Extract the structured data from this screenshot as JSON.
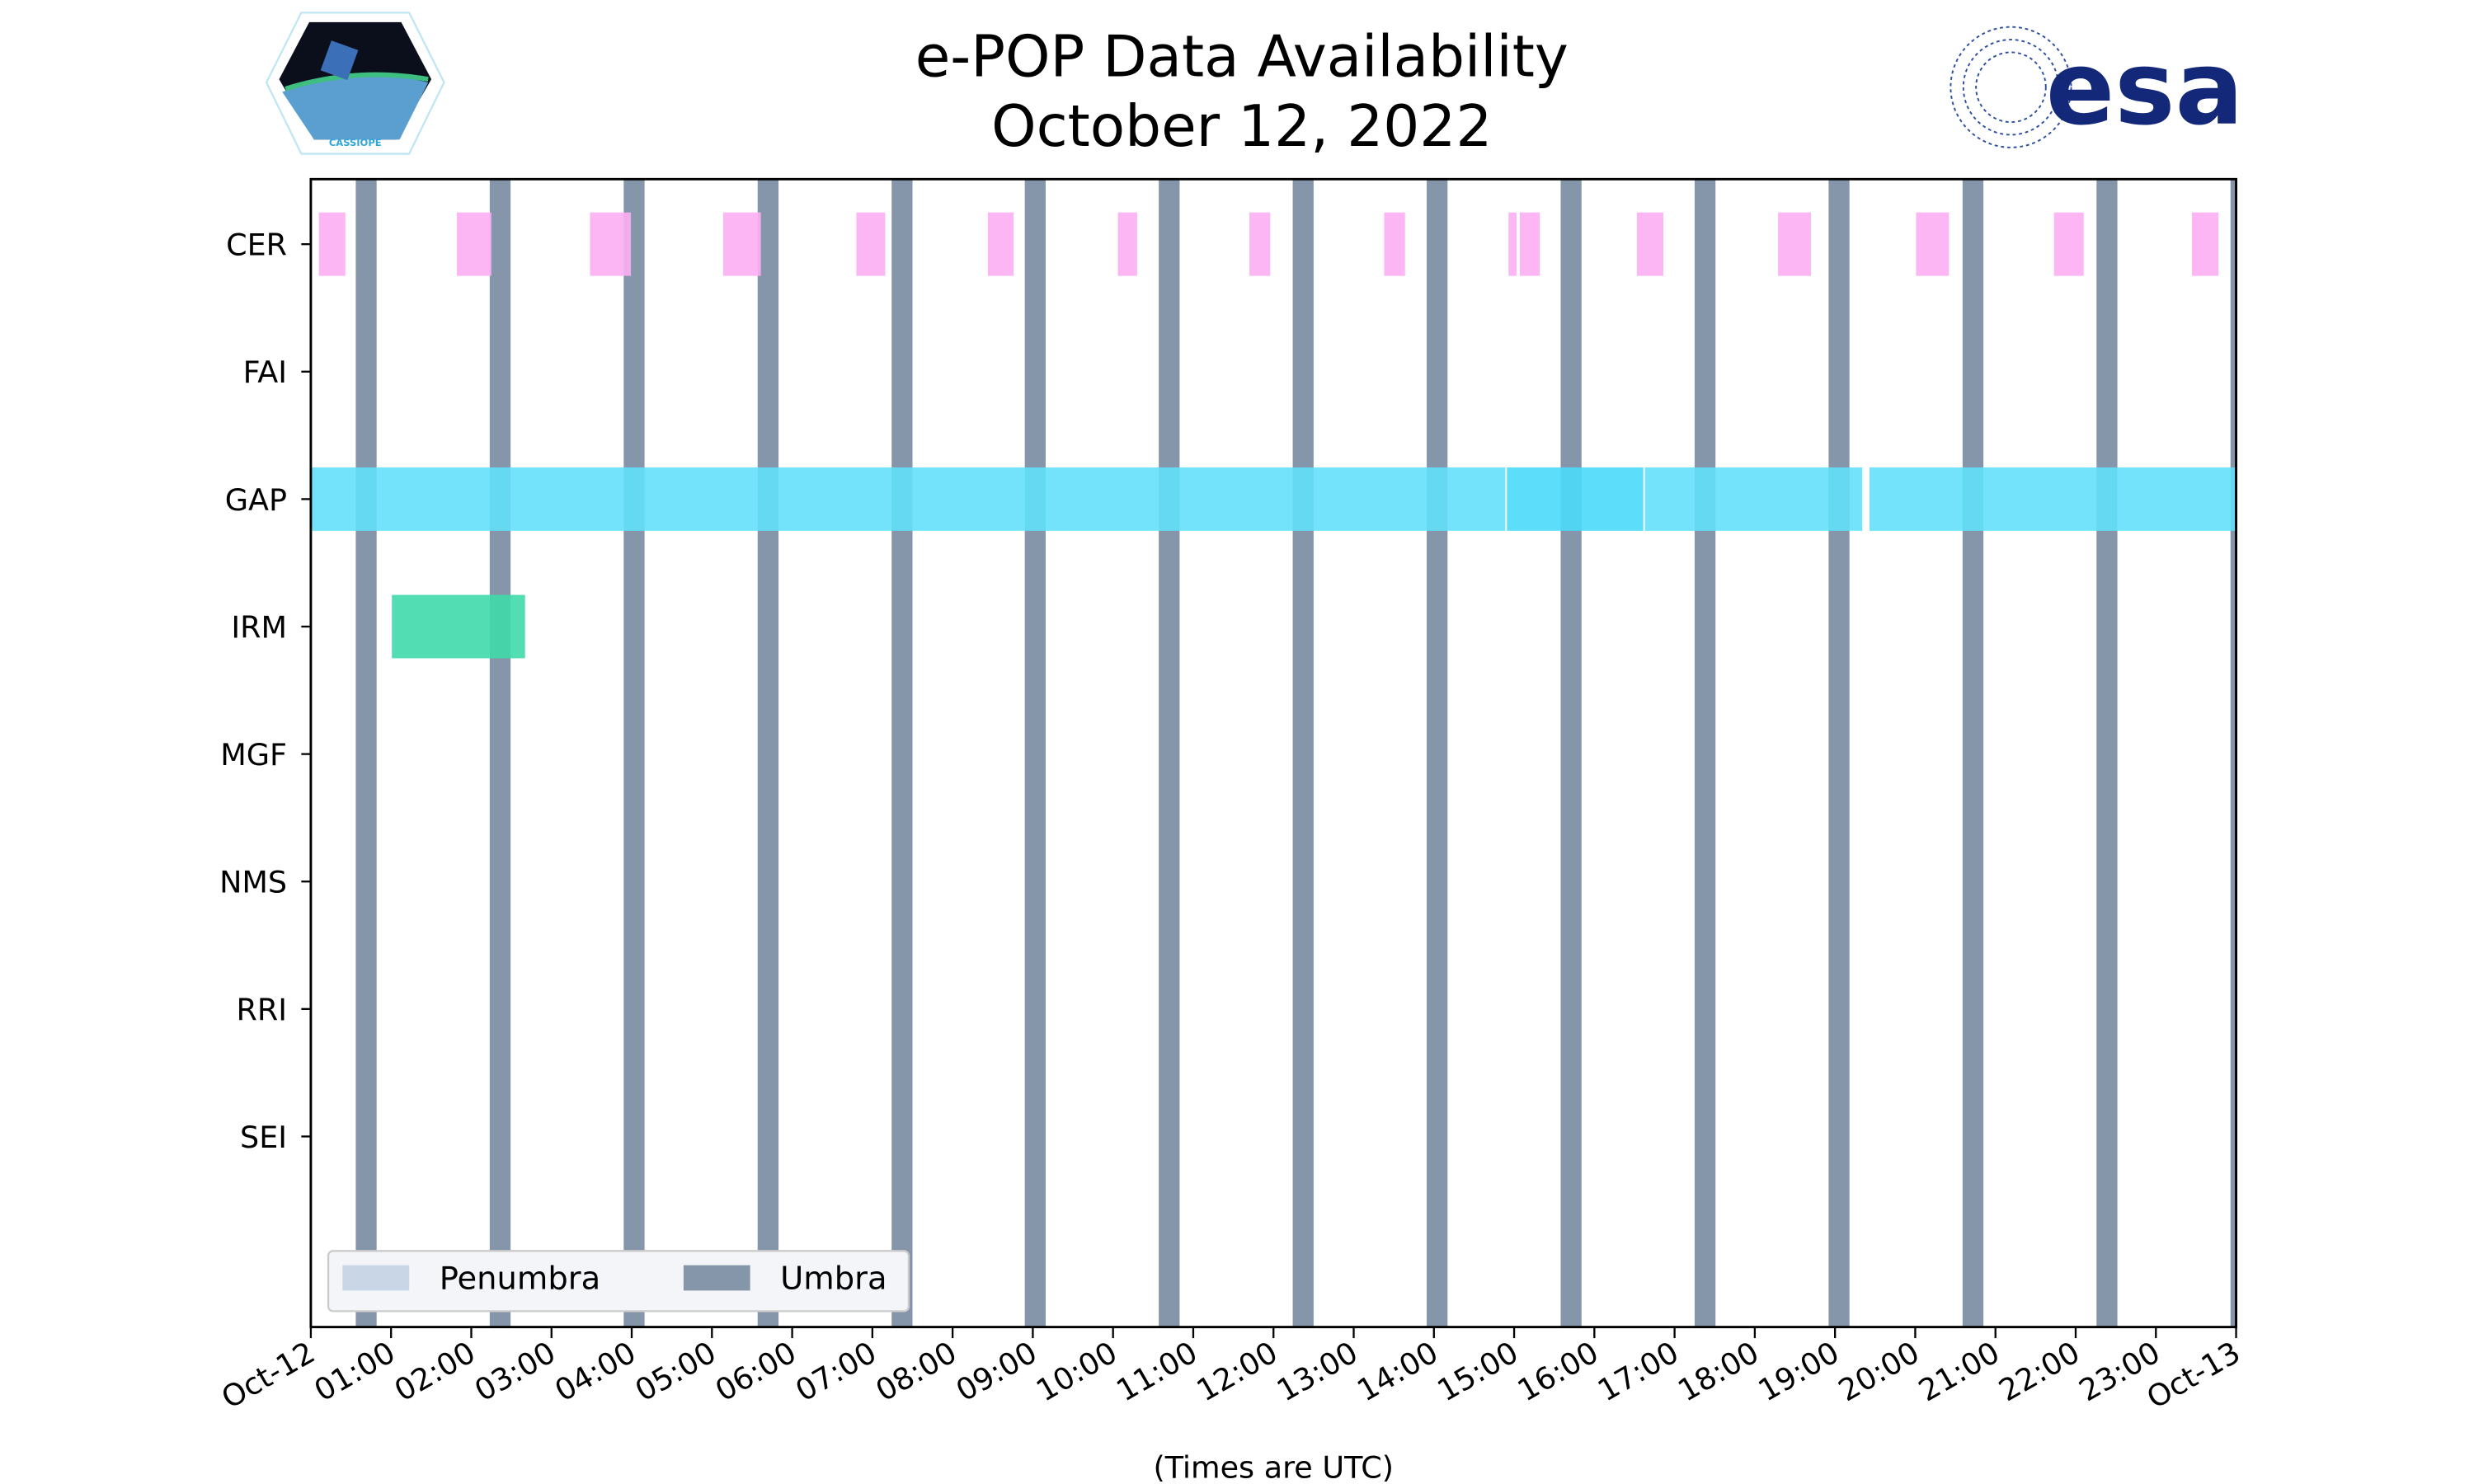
{
  "chart_data": {
    "type": "timeline",
    "title": "e-POP Data Availability",
    "subtitle": "October 12, 2022",
    "xlabel": "(Times are UTC)",
    "xlim_hours": [
      0,
      24
    ],
    "x_tick_labels": [
      "Oct-12",
      "01:00",
      "02:00",
      "03:00",
      "04:00",
      "05:00",
      "06:00",
      "07:00",
      "08:00",
      "09:00",
      "10:00",
      "11:00",
      "12:00",
      "13:00",
      "14:00",
      "15:00",
      "16:00",
      "17:00",
      "18:00",
      "19:00",
      "20:00",
      "21:00",
      "22:00",
      "23:00",
      "Oct-13"
    ],
    "instruments": [
      "CER",
      "FAI",
      "GAP",
      "IRM",
      "MGF",
      "NMS",
      "RRI",
      "SEI"
    ],
    "series": [
      {
        "name": "CER",
        "color": "#fdaef3",
        "intervals": [
          [
            0.1,
            0.43
          ],
          [
            1.82,
            2.25
          ],
          [
            3.48,
            3.99
          ],
          [
            5.14,
            5.61
          ],
          [
            6.8,
            7.16
          ],
          [
            8.44,
            8.76
          ],
          [
            10.06,
            10.3
          ],
          [
            11.7,
            11.96
          ],
          [
            13.38,
            13.64
          ],
          [
            14.93,
            15.03
          ],
          [
            15.07,
            15.32
          ],
          [
            16.53,
            16.86
          ],
          [
            18.29,
            18.7
          ],
          [
            20.01,
            20.42
          ],
          [
            21.73,
            22.1
          ],
          [
            23.45,
            23.78
          ]
        ]
      },
      {
        "name": "FAI",
        "color": "#c080ff",
        "intervals": []
      },
      {
        "name": "GAP",
        "color": "#63e0fa",
        "intervals": [
          [
            0,
            14.89
          ],
          [
            14.91,
            16.61
          ],
          [
            16.63,
            19.34
          ],
          [
            19.43,
            24
          ]
        ],
        "highlight_color": "#4adaf9",
        "highlight_index": 1
      },
      {
        "name": "IRM",
        "color": "#40d9aa",
        "intervals": [
          [
            1.01,
            2.67
          ]
        ]
      },
      {
        "name": "MGF",
        "color": "#888888",
        "intervals": []
      },
      {
        "name": "NMS",
        "color": "#888888",
        "intervals": []
      },
      {
        "name": "RRI",
        "color": "#888888",
        "intervals": []
      },
      {
        "name": "SEI",
        "color": "#888888",
        "intervals": []
      }
    ],
    "eclipse": {
      "umbra_color": "#8596aa",
      "penumbra_color": "#c8d6e5",
      "umbra_intervals": [
        [
          0.56,
          0.82
        ],
        [
          2.23,
          2.49
        ],
        [
          3.9,
          4.16
        ],
        [
          5.57,
          5.83
        ],
        [
          7.24,
          7.5
        ],
        [
          8.9,
          9.16
        ],
        [
          10.57,
          10.83
        ],
        [
          12.24,
          12.5
        ],
        [
          13.91,
          14.17
        ],
        [
          15.58,
          15.84
        ],
        [
          17.25,
          17.51
        ],
        [
          18.92,
          19.18
        ],
        [
          20.59,
          20.85
        ],
        [
          22.26,
          22.52
        ],
        [
          23.93,
          24.0
        ]
      ]
    },
    "legend": {
      "position": "lower-left",
      "entries": [
        "Penumbra",
        "Umbra"
      ]
    }
  },
  "logos": {
    "left": "CASSIOPE",
    "right": "esa"
  }
}
